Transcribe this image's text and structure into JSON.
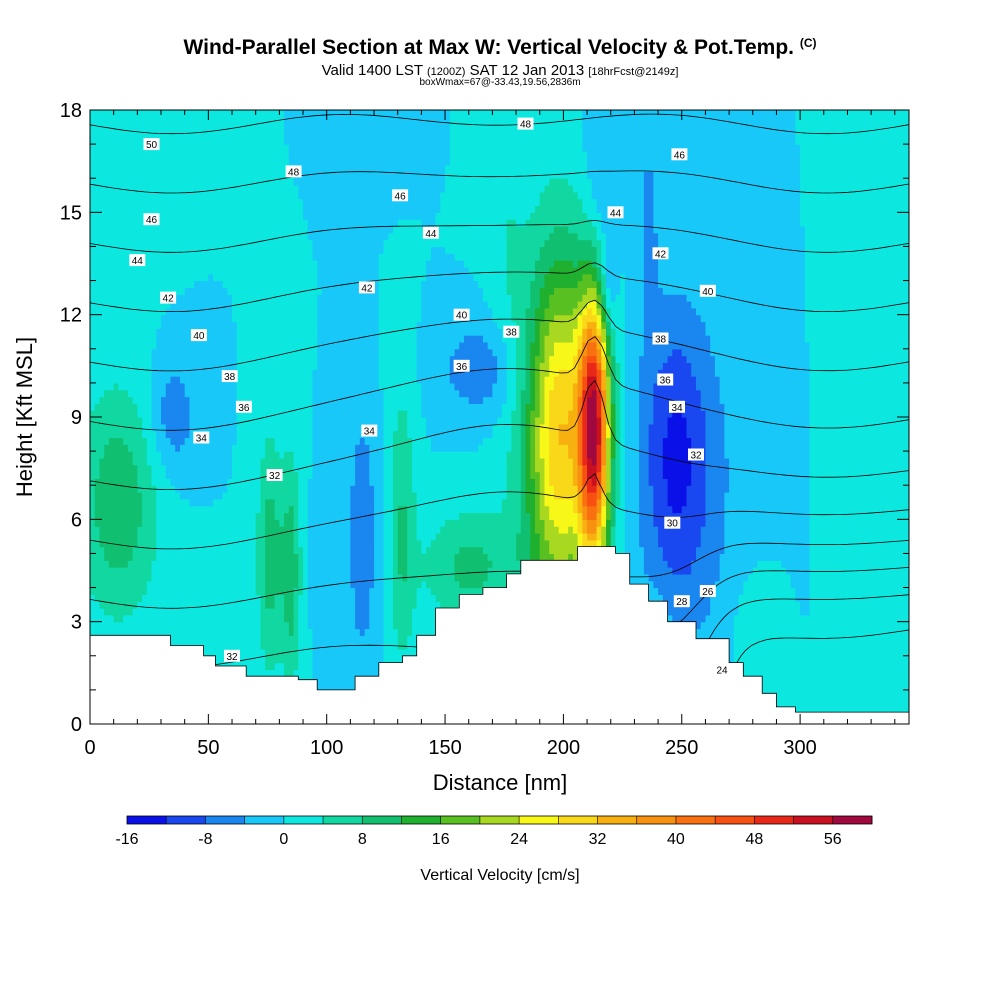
{
  "header": {
    "title": "Wind-Parallel Section at Max W: Vertical Velocity & Pot.Temp.",
    "title_mark": "(C)",
    "valid_a": "Valid 1400 LST",
    "valid_b": "(1200Z)",
    "valid_c": "SAT 12 Jan 2013",
    "valid_d": "[18hrFcst@2149z]",
    "box_info": "boxWmax=67@-33.43,19.56,2836m"
  },
  "chart_data": {
    "type": "heatmap",
    "xlabel": "Distance [nm]",
    "ylabel": "Height [Kft MSL]",
    "xlim": [
      0,
      346
    ],
    "ylim": [
      0,
      18
    ],
    "x_ticks": [
      0,
      50,
      100,
      150,
      200,
      250,
      300
    ],
    "y_ticks": [
      0,
      3,
      6,
      9,
      12,
      15,
      18
    ],
    "colorbar": {
      "title": "Vertical Velocity [cm/s]",
      "levels": [
        -16,
        -12,
        -8,
        -4,
        0,
        4,
        8,
        12,
        16,
        20,
        24,
        28,
        32,
        36,
        40,
        44,
        48,
        52,
        56,
        60
      ],
      "labels": [
        "-16",
        "-8",
        "0",
        "8",
        "16",
        "24",
        "32",
        "40",
        "48",
        "56"
      ],
      "colors": [
        "#0a10e8",
        "#1a48f0",
        "#1a86f0",
        "#18c8f8",
        "#0ce8e0",
        "#10d8a0",
        "#10c070",
        "#20b030",
        "#58c020",
        "#a8d820",
        "#f8f818",
        "#f8d818",
        "#f8b010",
        "#f89010",
        "#f87010",
        "#f85010",
        "#e82818",
        "#c81020",
        "#a00840"
      ]
    },
    "background_w": 0,
    "terrain_heights": [
      [
        0,
        2.6
      ],
      [
        24,
        2.6
      ],
      [
        34,
        2.3
      ],
      [
        48,
        2.0
      ],
      [
        53,
        1.7
      ],
      [
        66,
        1.4
      ],
      [
        88,
        1.3
      ],
      [
        96,
        1.0
      ],
      [
        112,
        1.4
      ],
      [
        122,
        1.8
      ],
      [
        132,
        2.0
      ],
      [
        138,
        2.6
      ],
      [
        146,
        3.4
      ],
      [
        156,
        3.8
      ],
      [
        166,
        4.0
      ],
      [
        176,
        4.4
      ],
      [
        182,
        4.8
      ],
      [
        194,
        4.8
      ],
      [
        206,
        5.2
      ],
      [
        222,
        5.0
      ],
      [
        228,
        4.1
      ],
      [
        236,
        3.6
      ],
      [
        244,
        3.0
      ],
      [
        256,
        2.5
      ],
      [
        270,
        1.8
      ],
      [
        276,
        1.4
      ],
      [
        284,
        0.9
      ],
      [
        290,
        0.5
      ],
      [
        298,
        0.35
      ],
      [
        346,
        0.35
      ]
    ],
    "w_features": [
      {
        "x": 213,
        "z": 8.8,
        "sx": 4.5,
        "sz": 2.8,
        "w": 50
      },
      {
        "x": 198,
        "z": 8.6,
        "sx": 9,
        "sz": 3.4,
        "w": 22
      },
      {
        "x": 200,
        "z": 8.0,
        "sx": 14,
        "sz": 4.5,
        "w": 10
      },
      {
        "x": 215,
        "z": 14.5,
        "sx": 5,
        "sz": 3.5,
        "w": -6
      },
      {
        "x": 219,
        "z": 12.8,
        "sx": 2.5,
        "sz": 1.0,
        "w": -6
      },
      {
        "x": 236,
        "z": 14.5,
        "sx": 3,
        "sz": 2.5,
        "w": -5
      },
      {
        "x": 250,
        "z": 7.2,
        "sx": 14,
        "sz": 3.5,
        "w": -10
      },
      {
        "x": 246,
        "z": 8.5,
        "sx": 8,
        "sz": 2.5,
        "w": -4
      },
      {
        "x": 165,
        "z": 10.4,
        "sx": 12,
        "sz": 1.0,
        "w": -7
      },
      {
        "x": 35,
        "z": 9.0,
        "sx": 7,
        "sz": 1.2,
        "w": -7
      },
      {
        "x": 115,
        "z": 5.5,
        "sx": 4,
        "sz": 2.5,
        "w": -8
      },
      {
        "x": 98,
        "z": 4.8,
        "sx": 2.5,
        "sz": 1.5,
        "w": -4
      },
      {
        "x": 12,
        "z": 6.5,
        "sx": 12,
        "sz": 2.4,
        "w": 11
      },
      {
        "x": 76,
        "z": 5.0,
        "sx": 4,
        "sz": 2.5,
        "w": 10
      },
      {
        "x": 85,
        "z": 4.5,
        "sx": 3,
        "sz": 2.4,
        "w": 10
      },
      {
        "x": 132,
        "z": 5.8,
        "sx": 4,
        "sz": 3.0,
        "w": 8
      },
      {
        "x": 160,
        "z": 4.6,
        "sx": 14,
        "sz": 1.2,
        "w": 9
      },
      {
        "x": 280,
        "z": 2.4,
        "sx": 6,
        "sz": 1.3,
        "w": 3
      },
      {
        "x": 340,
        "z": 9.5,
        "sx": 10,
        "sz": 6,
        "w": 4
      },
      {
        "x": 28,
        "z": 16.5,
        "sx": 6,
        "sz": 1.5,
        "w": 4
      },
      {
        "x": 176,
        "z": 14.5,
        "sx": 5,
        "sz": 2.5,
        "w": 3
      },
      {
        "x": 122,
        "z": 17.2,
        "sx": 8,
        "sz": 1.0,
        "w": -4
      },
      {
        "x": 240,
        "z": 2.0,
        "sx": 4,
        "sz": 1.2,
        "w": 4
      }
    ],
    "theta_contours": [
      {
        "level": 24,
        "label": "24"
      },
      {
        "level": 26,
        "label": "26"
      },
      {
        "level": 28,
        "label": "28"
      },
      {
        "level": 30,
        "label": "30"
      },
      {
        "level": 32,
        "label": "32"
      },
      {
        "level": 34,
        "label": "34"
      },
      {
        "level": 36,
        "label": "36"
      },
      {
        "level": 38,
        "label": "38"
      },
      {
        "level": 40,
        "label": "40"
      },
      {
        "level": 42,
        "label": "42"
      },
      {
        "level": 44,
        "label": "44"
      },
      {
        "level": 46,
        "label": "46"
      },
      {
        "level": 48,
        "label": "48"
      },
      {
        "level": 50,
        "label": "50"
      }
    ],
    "contour_labels": [
      {
        "x": 26,
        "z": 17.0,
        "text": "50"
      },
      {
        "x": 86,
        "z": 16.2,
        "text": "48"
      },
      {
        "x": 184,
        "z": 17.6,
        "text": "48"
      },
      {
        "x": 26,
        "z": 14.8,
        "text": "46"
      },
      {
        "x": 131,
        "z": 15.5,
        "text": "46"
      },
      {
        "x": 249,
        "z": 16.7,
        "text": "46"
      },
      {
        "x": 20,
        "z": 13.6,
        "text": "44"
      },
      {
        "x": 144,
        "z": 14.4,
        "text": "44"
      },
      {
        "x": 222,
        "z": 15.0,
        "text": "44"
      },
      {
        "x": 33,
        "z": 12.5,
        "text": "42"
      },
      {
        "x": 117,
        "z": 12.8,
        "text": "42"
      },
      {
        "x": 241,
        "z": 13.8,
        "text": "42"
      },
      {
        "x": 46,
        "z": 11.4,
        "text": "40"
      },
      {
        "x": 157,
        "z": 12.0,
        "text": "40"
      },
      {
        "x": 261,
        "z": 12.7,
        "text": "40"
      },
      {
        "x": 178,
        "z": 11.5,
        "text": "38"
      },
      {
        "x": 241,
        "z": 11.3,
        "text": "38"
      },
      {
        "x": 59,
        "z": 10.2,
        "text": "38"
      },
      {
        "x": 157,
        "z": 10.5,
        "text": "36"
      },
      {
        "x": 65,
        "z": 9.3,
        "text": "36"
      },
      {
        "x": 243,
        "z": 10.1,
        "text": "36"
      },
      {
        "x": 47,
        "z": 8.4,
        "text": "34"
      },
      {
        "x": 118,
        "z": 8.6,
        "text": "34"
      },
      {
        "x": 248,
        "z": 9.3,
        "text": "34"
      },
      {
        "x": 78,
        "z": 7.3,
        "text": "32"
      },
      {
        "x": 256,
        "z": 7.9,
        "text": "32"
      },
      {
        "x": 60,
        "z": 2.0,
        "text": "32"
      },
      {
        "x": 246,
        "z": 5.9,
        "text": "30"
      },
      {
        "x": 250,
        "z": 3.6,
        "text": "28"
      },
      {
        "x": 261,
        "z": 3.9,
        "text": "26"
      },
      {
        "x": 267,
        "z": 1.6,
        "text": "24"
      }
    ]
  }
}
